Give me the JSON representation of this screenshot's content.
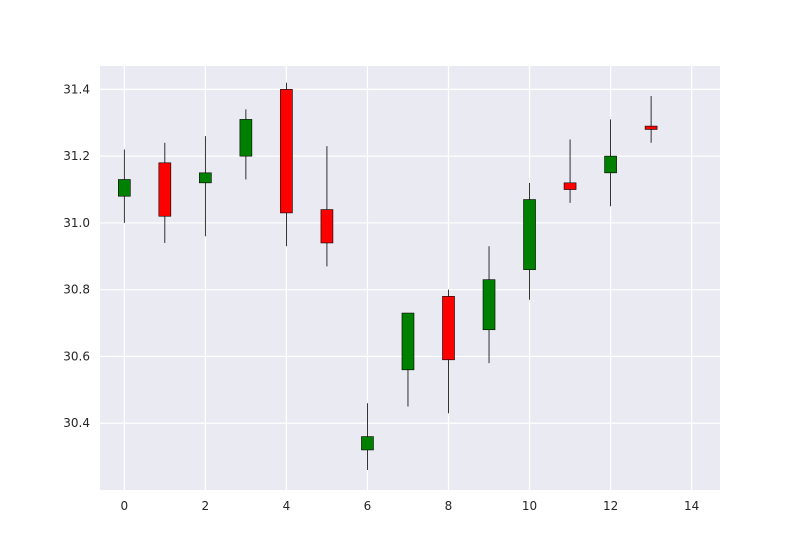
{
  "chart_data": {
    "type": "candlestick",
    "title": "",
    "xlabel": "",
    "ylabel": "",
    "xlim": [
      -0.6,
      14.7
    ],
    "ylim": [
      30.2,
      31.47
    ],
    "xticks": [
      0,
      2,
      4,
      6,
      8,
      10,
      12,
      14
    ],
    "yticks": [
      30.4,
      30.6,
      30.8,
      31.0,
      31.2,
      31.4
    ],
    "xtick_labels": [
      "0",
      "2",
      "4",
      "6",
      "8",
      "10",
      "12",
      "14"
    ],
    "ytick_labels": [
      "30.4",
      "30.6",
      "30.8",
      "31.0",
      "31.2",
      "31.4"
    ],
    "grid": true,
    "colors": {
      "up": "#008000",
      "down": "#ff0000",
      "background": "#eaeaf2",
      "grid": "#ffffff",
      "wick": "#000000"
    },
    "candles": [
      {
        "x": 0,
        "open": 31.08,
        "close": 31.13,
        "high": 31.22,
        "low": 31.0
      },
      {
        "x": 1,
        "open": 31.18,
        "close": 31.02,
        "high": 31.24,
        "low": 30.94
      },
      {
        "x": 2,
        "open": 31.12,
        "close": 31.15,
        "high": 31.26,
        "low": 30.96
      },
      {
        "x": 3,
        "open": 31.2,
        "close": 31.31,
        "high": 31.34,
        "low": 31.13
      },
      {
        "x": 4,
        "open": 31.4,
        "close": 31.03,
        "high": 31.42,
        "low": 30.93
      },
      {
        "x": 5,
        "open": 31.04,
        "close": 30.94,
        "high": 31.23,
        "low": 30.87
      },
      {
        "x": 6,
        "open": 30.32,
        "close": 30.36,
        "high": 30.46,
        "low": 30.26
      },
      {
        "x": 7,
        "open": 30.56,
        "close": 30.73,
        "high": 30.73,
        "low": 30.45
      },
      {
        "x": 8,
        "open": 30.78,
        "close": 30.59,
        "high": 30.8,
        "low": 30.43
      },
      {
        "x": 9,
        "open": 30.68,
        "close": 30.83,
        "high": 30.93,
        "low": 30.58
      },
      {
        "x": 10,
        "open": 30.86,
        "close": 31.07,
        "high": 31.12,
        "low": 30.77
      },
      {
        "x": 11,
        "open": 31.12,
        "close": 31.1,
        "high": 31.25,
        "low": 31.06
      },
      {
        "x": 12,
        "open": 31.15,
        "close": 31.2,
        "high": 31.31,
        "low": 31.05
      },
      {
        "x": 13,
        "open": 31.29,
        "close": 31.28,
        "high": 31.38,
        "low": 31.24
      }
    ]
  }
}
